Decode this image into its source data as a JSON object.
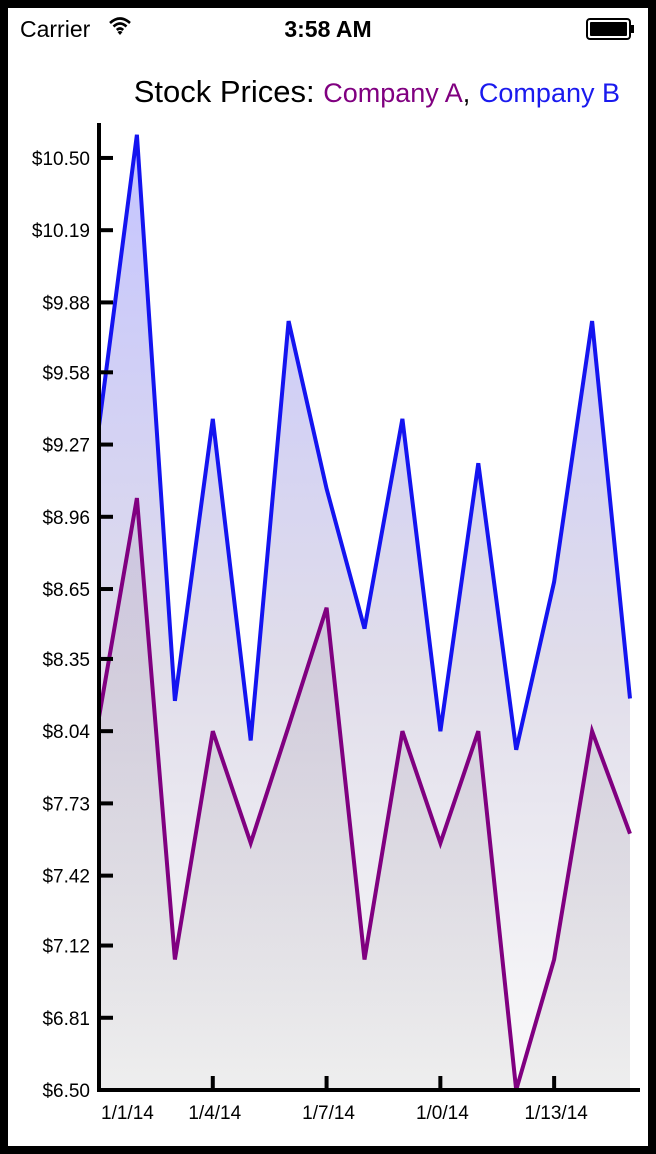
{
  "status_bar": {
    "carrier": "Carrier",
    "time": "3:58 AM",
    "wifi_icon": "wifi-icon",
    "battery_icon": "battery-icon"
  },
  "chart_data": {
    "type": "area",
    "title": {
      "prefix": "Stock Prices:",
      "series_a": "Company A",
      "separator": ",",
      "series_b": "Company B"
    },
    "colors": {
      "series_a": "#800080",
      "series_b": "#1414f0",
      "axis": "#000000"
    },
    "ylim": [
      6.5,
      10.65
    ],
    "y_ticks": [
      "$6.50",
      "$6.81",
      "$7.12",
      "$7.42",
      "$7.73",
      "$8.04",
      "$8.35",
      "$8.65",
      "$8.96",
      "$9.27",
      "$9.58",
      "$9.88",
      "$10.19",
      "$10.50"
    ],
    "y_tick_values": [
      6.5,
      6.81,
      7.12,
      7.42,
      7.73,
      8.04,
      8.35,
      8.65,
      8.96,
      9.27,
      9.58,
      9.88,
      10.19,
      10.5
    ],
    "x": [
      0,
      1,
      2,
      3,
      4,
      5,
      6,
      7,
      8,
      9,
      10,
      11,
      12,
      13,
      14
    ],
    "x_ticks": [
      "1/1/14",
      "1/4/14",
      "1/7/14",
      "1/0/14",
      "1/13/14"
    ],
    "x_tick_positions": [
      0,
      3,
      6,
      9,
      12
    ],
    "series": [
      {
        "name": "Company A",
        "values": [
          8.1,
          9.04,
          7.06,
          8.04,
          7.56,
          8.06,
          8.57,
          7.06,
          8.04,
          7.56,
          8.04,
          6.5,
          7.06,
          8.04,
          7.6
        ]
      },
      {
        "name": "Company B",
        "values": [
          9.35,
          10.6,
          8.17,
          9.38,
          8.0,
          9.8,
          9.08,
          8.48,
          9.38,
          8.04,
          9.19,
          7.96,
          8.68,
          9.8,
          8.18
        ]
      }
    ]
  }
}
